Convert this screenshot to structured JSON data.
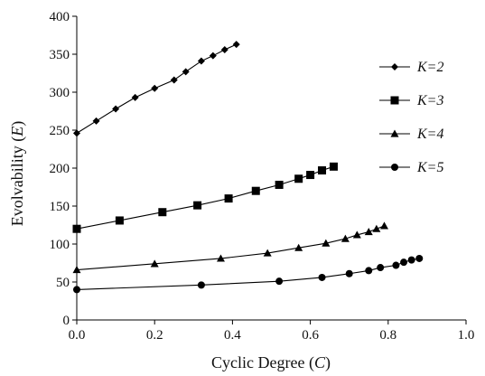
{
  "chart_data": {
    "type": "line",
    "title": "",
    "xlabel": {
      "text": "Cyclic Degree (",
      "symbol": "C",
      "suffix": ")"
    },
    "ylabel": {
      "text": "Evolvability (",
      "symbol": "E",
      "suffix": ")"
    },
    "xlim": [
      0,
      1.0
    ],
    "ylim": [
      0,
      400
    ],
    "xticks": [
      "0.0",
      "0.2",
      "0.4",
      "0.6",
      "0.8",
      "1.0"
    ],
    "yticks": [
      "0",
      "50",
      "100",
      "150",
      "200",
      "250",
      "300",
      "350",
      "400"
    ],
    "grid": false,
    "legend_position": "right",
    "line_color": "#000000",
    "series": [
      {
        "name": "K=2",
        "marker": "diamond",
        "x": [
          0.0,
          0.05,
          0.1,
          0.15,
          0.2,
          0.25,
          0.28,
          0.32,
          0.35,
          0.38,
          0.41
        ],
        "y": [
          246,
          262,
          278,
          293,
          305,
          316,
          327,
          341,
          348,
          356,
          363
        ]
      },
      {
        "name": "K=3",
        "marker": "square",
        "x": [
          0.0,
          0.11,
          0.22,
          0.31,
          0.39,
          0.46,
          0.52,
          0.57,
          0.6,
          0.63,
          0.66
        ],
        "y": [
          120,
          131,
          142,
          151,
          160,
          170,
          178,
          186,
          191,
          197,
          202
        ]
      },
      {
        "name": "K=4",
        "marker": "triangle",
        "x": [
          0.0,
          0.2,
          0.37,
          0.49,
          0.57,
          0.64,
          0.69,
          0.72,
          0.75,
          0.77,
          0.79
        ],
        "y": [
          66,
          74,
          81,
          88,
          95,
          101,
          107,
          112,
          116,
          120,
          124
        ]
      },
      {
        "name": "K=5",
        "marker": "circle",
        "x": [
          0.0,
          0.32,
          0.52,
          0.63,
          0.7,
          0.75,
          0.78,
          0.82,
          0.84,
          0.86,
          0.88
        ],
        "y": [
          40,
          46,
          51,
          56,
          61,
          65,
          69,
          72,
          76,
          79,
          81
        ]
      }
    ]
  }
}
